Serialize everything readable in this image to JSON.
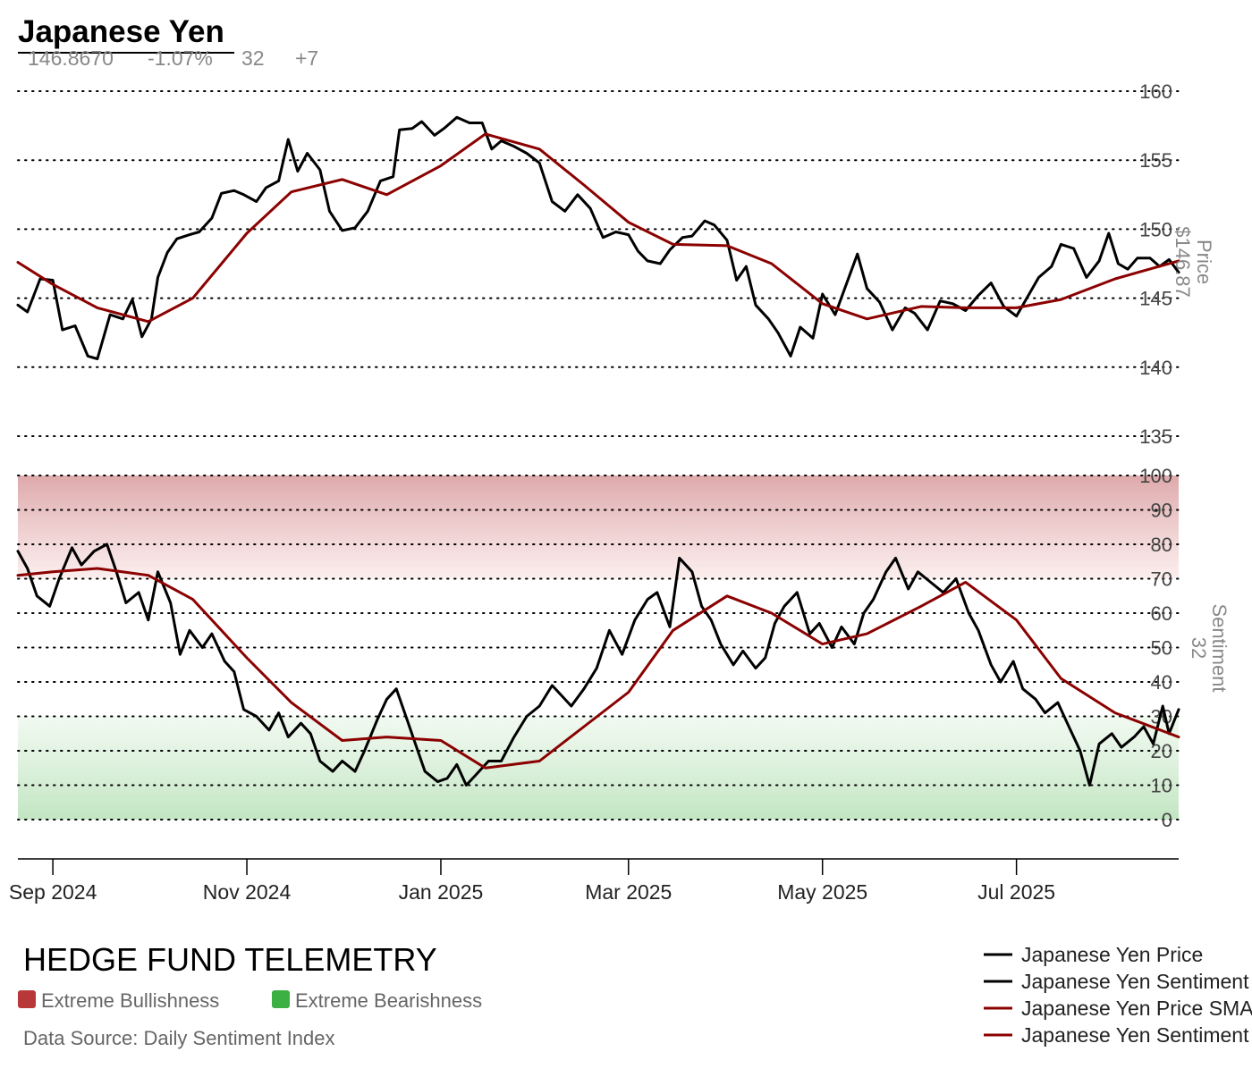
{
  "header": {
    "title": "Japanese Yen",
    "price": "146.8670",
    "change": "-1.07%",
    "sentiment": "32",
    "sentiment_change": "+7"
  },
  "axis_labels": {
    "price_title": "Price",
    "price_value": "$146.87",
    "sentiment_title": "Sentiment",
    "sentiment_value": "32"
  },
  "footer": {
    "brand": "HEDGE FUND TELEMETRY",
    "extreme_bull": "Extreme Bullishness",
    "extreme_bear": "Extreme Bearishness",
    "source": "Data Source: Daily Sentiment Index"
  },
  "colors": {
    "price_line": "#000000",
    "sma_line": "#8b0000",
    "extreme_bull": "#b8383a",
    "extreme_bear": "#3cb043",
    "grid": "#000000"
  },
  "chart_data": {
    "type": "line",
    "x_ticks": [
      "Sep 2024",
      "Nov 2024",
      "Jan 2025",
      "Mar 2025",
      "May 2025",
      "Jul 2025"
    ],
    "price_axis": {
      "ticks": [
        135,
        140,
        145,
        150,
        155,
        160
      ],
      "range": [
        135,
        160
      ]
    },
    "sentiment_axis": {
      "ticks": [
        0,
        10,
        20,
        30,
        40,
        50,
        60,
        70,
        80,
        90,
        100
      ],
      "range": [
        0,
        100
      ]
    },
    "bands": {
      "extreme_bullishness": [
        70,
        100
      ],
      "extreme_bearishness": [
        0,
        30
      ]
    },
    "legend": [
      "Japanese Yen Price",
      "Japanese Yen Sentiment",
      "Japanese Yen Price SMA",
      "Japanese Yen Sentiment SMA"
    ],
    "legend_placement": "bottom-right",
    "series": [
      {
        "name": "Japanese Yen Price",
        "pane": "price",
        "points": [
          [
            "2024-08-21",
            144.5
          ],
          [
            "2024-08-24",
            144.0
          ],
          [
            "2024-08-28",
            146.4
          ],
          [
            "2024-09-01",
            146.3
          ],
          [
            "2024-09-04",
            142.7
          ],
          [
            "2024-09-08",
            143.0
          ],
          [
            "2024-09-12",
            140.8
          ],
          [
            "2024-09-15",
            140.6
          ],
          [
            "2024-09-19",
            143.8
          ],
          [
            "2024-09-23",
            143.5
          ],
          [
            "2024-09-26",
            144.9
          ],
          [
            "2024-09-29",
            142.2
          ],
          [
            "2024-10-02",
            143.5
          ],
          [
            "2024-10-04",
            146.5
          ],
          [
            "2024-10-07",
            148.3
          ],
          [
            "2024-10-10",
            149.3
          ],
          [
            "2024-10-14",
            149.6
          ],
          [
            "2024-10-17",
            149.8
          ],
          [
            "2024-10-21",
            150.8
          ],
          [
            "2024-10-24",
            152.6
          ],
          [
            "2024-10-28",
            152.8
          ],
          [
            "2024-10-31",
            152.5
          ],
          [
            "2024-11-04",
            152.0
          ],
          [
            "2024-11-07",
            153.0
          ],
          [
            "2024-11-11",
            153.5
          ],
          [
            "2024-11-14",
            156.5
          ],
          [
            "2024-11-17",
            154.2
          ],
          [
            "2024-11-20",
            155.5
          ],
          [
            "2024-11-24",
            154.3
          ],
          [
            "2024-11-27",
            151.3
          ],
          [
            "2024-12-01",
            149.9
          ],
          [
            "2024-12-05",
            150.1
          ],
          [
            "2024-12-09",
            151.3
          ],
          [
            "2024-12-13",
            153.5
          ],
          [
            "2024-12-17",
            153.8
          ],
          [
            "2024-12-19",
            157.2
          ],
          [
            "2024-12-23",
            157.3
          ],
          [
            "2024-12-26",
            157.8
          ],
          [
            "2024-12-30",
            156.8
          ],
          [
            "2025-01-02",
            157.3
          ],
          [
            "2025-01-06",
            158.1
          ],
          [
            "2025-01-10",
            157.7
          ],
          [
            "2025-01-14",
            157.7
          ],
          [
            "2025-01-17",
            155.8
          ],
          [
            "2025-01-20",
            156.4
          ],
          [
            "2025-01-24",
            156.0
          ],
          [
            "2025-01-28",
            155.5
          ],
          [
            "2025-02-01",
            154.8
          ],
          [
            "2025-02-05",
            152.0
          ],
          [
            "2025-02-09",
            151.3
          ],
          [
            "2025-02-13",
            152.5
          ],
          [
            "2025-02-17",
            151.5
          ],
          [
            "2025-02-21",
            149.4
          ],
          [
            "2025-02-25",
            149.8
          ],
          [
            "2025-03-01",
            149.6
          ],
          [
            "2025-03-04",
            148.4
          ],
          [
            "2025-03-07",
            147.7
          ],
          [
            "2025-03-11",
            147.5
          ],
          [
            "2025-03-14",
            148.5
          ],
          [
            "2025-03-18",
            149.4
          ],
          [
            "2025-03-21",
            149.5
          ],
          [
            "2025-03-25",
            150.6
          ],
          [
            "2025-03-28",
            150.3
          ],
          [
            "2025-04-01",
            149.2
          ],
          [
            "2025-04-04",
            146.3
          ],
          [
            "2025-04-07",
            147.3
          ],
          [
            "2025-04-10",
            144.5
          ],
          [
            "2025-04-14",
            143.5
          ],
          [
            "2025-04-17",
            142.5
          ],
          [
            "2025-04-21",
            140.8
          ],
          [
            "2025-04-24",
            142.9
          ],
          [
            "2025-04-28",
            142.1
          ],
          [
            "2025-05-01",
            145.3
          ],
          [
            "2025-05-05",
            143.8
          ],
          [
            "2025-05-08",
            145.7
          ],
          [
            "2025-05-12",
            148.2
          ],
          [
            "2025-05-15",
            145.7
          ],
          [
            "2025-05-19",
            144.7
          ],
          [
            "2025-05-23",
            142.7
          ],
          [
            "2025-05-27",
            144.3
          ],
          [
            "2025-05-30",
            143.9
          ],
          [
            "2025-06-03",
            142.7
          ],
          [
            "2025-06-07",
            144.8
          ],
          [
            "2025-06-11",
            144.6
          ],
          [
            "2025-06-15",
            144.1
          ],
          [
            "2025-06-19",
            145.2
          ],
          [
            "2025-06-23",
            146.1
          ],
          [
            "2025-06-27",
            144.4
          ],
          [
            "2025-07-01",
            143.7
          ],
          [
            "2025-07-04",
            144.9
          ],
          [
            "2025-07-08",
            146.5
          ],
          [
            "2025-07-12",
            147.3
          ],
          [
            "2025-07-15",
            148.9
          ],
          [
            "2025-07-19",
            148.6
          ],
          [
            "2025-07-23",
            146.5
          ],
          [
            "2025-07-27",
            147.7
          ],
          [
            "2025-07-30",
            149.7
          ],
          [
            "2025-08-02",
            147.5
          ],
          [
            "2025-08-05",
            147.1
          ],
          [
            "2025-08-08",
            147.9
          ],
          [
            "2025-08-12",
            147.9
          ],
          [
            "2025-08-15",
            147.3
          ],
          [
            "2025-08-18",
            147.8
          ],
          [
            "2025-08-21",
            146.87
          ]
        ]
      },
      {
        "name": "Japanese Yen Price SMA",
        "pane": "price",
        "points": [
          [
            "2024-08-21",
            147.6
          ],
          [
            "2024-09-01",
            146.0
          ],
          [
            "2024-09-15",
            144.3
          ],
          [
            "2024-10-01",
            143.3
          ],
          [
            "2024-10-15",
            145.0
          ],
          [
            "2024-11-01",
            149.7
          ],
          [
            "2024-11-15",
            152.7
          ],
          [
            "2024-12-01",
            153.6
          ],
          [
            "2024-12-15",
            152.5
          ],
          [
            "2025-01-01",
            154.6
          ],
          [
            "2025-01-15",
            156.9
          ],
          [
            "2025-02-01",
            155.8
          ],
          [
            "2025-02-15",
            153.2
          ],
          [
            "2025-03-01",
            150.5
          ],
          [
            "2025-03-15",
            148.9
          ],
          [
            "2025-04-01",
            148.8
          ],
          [
            "2025-04-15",
            147.5
          ],
          [
            "2025-05-01",
            144.6
          ],
          [
            "2025-05-15",
            143.5
          ],
          [
            "2025-06-01",
            144.4
          ],
          [
            "2025-06-15",
            144.3
          ],
          [
            "2025-07-01",
            144.3
          ],
          [
            "2025-07-15",
            144.9
          ],
          [
            "2025-08-01",
            146.4
          ],
          [
            "2025-08-21",
            147.7
          ]
        ]
      },
      {
        "name": "Japanese Yen Sentiment",
        "pane": "sentiment",
        "points": [
          [
            "2024-08-21",
            78
          ],
          [
            "2024-08-24",
            73
          ],
          [
            "2024-08-27",
            65
          ],
          [
            "2024-08-31",
            62
          ],
          [
            "2024-09-03",
            70
          ],
          [
            "2024-09-07",
            79
          ],
          [
            "2024-09-10",
            74
          ],
          [
            "2024-09-14",
            78
          ],
          [
            "2024-09-18",
            80
          ],
          [
            "2024-09-21",
            72
          ],
          [
            "2024-09-24",
            63
          ],
          [
            "2024-09-28",
            66
          ],
          [
            "2024-10-01",
            58
          ],
          [
            "2024-10-04",
            72
          ],
          [
            "2024-10-08",
            63
          ],
          [
            "2024-10-11",
            48
          ],
          [
            "2024-10-14",
            55
          ],
          [
            "2024-10-18",
            50
          ],
          [
            "2024-10-21",
            54
          ],
          [
            "2024-10-25",
            46
          ],
          [
            "2024-10-28",
            43
          ],
          [
            "2024-10-31",
            32
          ],
          [
            "2024-11-04",
            30
          ],
          [
            "2024-11-08",
            26
          ],
          [
            "2024-11-11",
            31
          ],
          [
            "2024-11-14",
            24
          ],
          [
            "2024-11-18",
            28
          ],
          [
            "2024-11-21",
            25
          ],
          [
            "2024-11-24",
            17
          ],
          [
            "2024-11-28",
            14
          ],
          [
            "2024-12-01",
            17
          ],
          [
            "2024-12-05",
            14
          ],
          [
            "2024-12-08",
            20
          ],
          [
            "2024-12-12",
            29
          ],
          [
            "2024-12-15",
            35
          ],
          [
            "2024-12-18",
            38
          ],
          [
            "2024-12-21",
            30
          ],
          [
            "2024-12-24",
            22
          ],
          [
            "2024-12-27",
            14
          ],
          [
            "2024-12-31",
            11
          ],
          [
            "2025-01-03",
            12
          ],
          [
            "2025-01-06",
            16
          ],
          [
            "2025-01-09",
            10
          ],
          [
            "2025-01-12",
            13
          ],
          [
            "2025-01-16",
            17
          ],
          [
            "2025-01-20",
            17
          ],
          [
            "2025-01-24",
            24
          ],
          [
            "2025-01-28",
            30
          ],
          [
            "2025-02-01",
            33
          ],
          [
            "2025-02-05",
            39
          ],
          [
            "2025-02-08",
            36
          ],
          [
            "2025-02-11",
            33
          ],
          [
            "2025-02-15",
            38
          ],
          [
            "2025-02-19",
            44
          ],
          [
            "2025-02-23",
            55
          ],
          [
            "2025-02-27",
            48
          ],
          [
            "2025-03-03",
            58
          ],
          [
            "2025-03-07",
            64
          ],
          [
            "2025-03-10",
            66
          ],
          [
            "2025-03-14",
            56
          ],
          [
            "2025-03-17",
            76
          ],
          [
            "2025-03-21",
            72
          ],
          [
            "2025-03-24",
            62
          ],
          [
            "2025-03-27",
            58
          ],
          [
            "2025-03-30",
            51
          ],
          [
            "2025-04-03",
            45
          ],
          [
            "2025-04-06",
            49
          ],
          [
            "2025-04-10",
            44
          ],
          [
            "2025-04-13",
            47
          ],
          [
            "2025-04-16",
            57
          ],
          [
            "2025-04-19",
            62
          ],
          [
            "2025-04-23",
            66
          ],
          [
            "2025-04-27",
            54
          ],
          [
            "2025-04-30",
            57
          ],
          [
            "2025-05-04",
            50
          ],
          [
            "2025-05-07",
            56
          ],
          [
            "2025-05-11",
            51
          ],
          [
            "2025-05-14",
            60
          ],
          [
            "2025-05-17",
            64
          ],
          [
            "2025-05-21",
            72
          ],
          [
            "2025-05-24",
            76
          ],
          [
            "2025-05-28",
            67
          ],
          [
            "2025-05-31",
            72
          ],
          [
            "2025-06-04",
            69
          ],
          [
            "2025-06-08",
            66
          ],
          [
            "2025-06-12",
            70
          ],
          [
            "2025-06-16",
            60
          ],
          [
            "2025-06-19",
            55
          ],
          [
            "2025-06-23",
            45
          ],
          [
            "2025-06-26",
            40
          ],
          [
            "2025-06-30",
            46
          ],
          [
            "2025-07-03",
            38
          ],
          [
            "2025-07-07",
            35
          ],
          [
            "2025-07-10",
            31
          ],
          [
            "2025-07-14",
            34
          ],
          [
            "2025-07-17",
            28
          ],
          [
            "2025-07-21",
            20
          ],
          [
            "2025-07-24",
            10
          ],
          [
            "2025-07-27",
            22
          ],
          [
            "2025-07-31",
            25
          ],
          [
            "2025-08-03",
            21
          ],
          [
            "2025-08-07",
            24
          ],
          [
            "2025-08-10",
            27
          ],
          [
            "2025-08-13",
            22
          ],
          [
            "2025-08-16",
            33
          ],
          [
            "2025-08-18",
            25
          ],
          [
            "2025-08-21",
            32
          ]
        ]
      },
      {
        "name": "Japanese Yen Sentiment SMA",
        "pane": "sentiment",
        "points": [
          [
            "2024-08-21",
            71
          ],
          [
            "2024-09-01",
            72
          ],
          [
            "2024-09-15",
            73
          ],
          [
            "2024-10-01",
            71
          ],
          [
            "2024-10-15",
            64
          ],
          [
            "2024-11-01",
            47
          ],
          [
            "2024-11-15",
            34
          ],
          [
            "2024-12-01",
            23
          ],
          [
            "2024-12-15",
            24
          ],
          [
            "2025-01-01",
            23
          ],
          [
            "2025-01-15",
            15
          ],
          [
            "2025-02-01",
            17
          ],
          [
            "2025-02-15",
            27
          ],
          [
            "2025-03-01",
            37
          ],
          [
            "2025-03-15",
            55
          ],
          [
            "2025-04-01",
            65
          ],
          [
            "2025-04-15",
            60
          ],
          [
            "2025-05-01",
            51
          ],
          [
            "2025-05-15",
            54
          ],
          [
            "2025-06-01",
            62
          ],
          [
            "2025-06-15",
            69
          ],
          [
            "2025-07-01",
            58
          ],
          [
            "2025-07-15",
            41
          ],
          [
            "2025-08-01",
            31
          ],
          [
            "2025-08-21",
            24
          ]
        ]
      }
    ]
  }
}
